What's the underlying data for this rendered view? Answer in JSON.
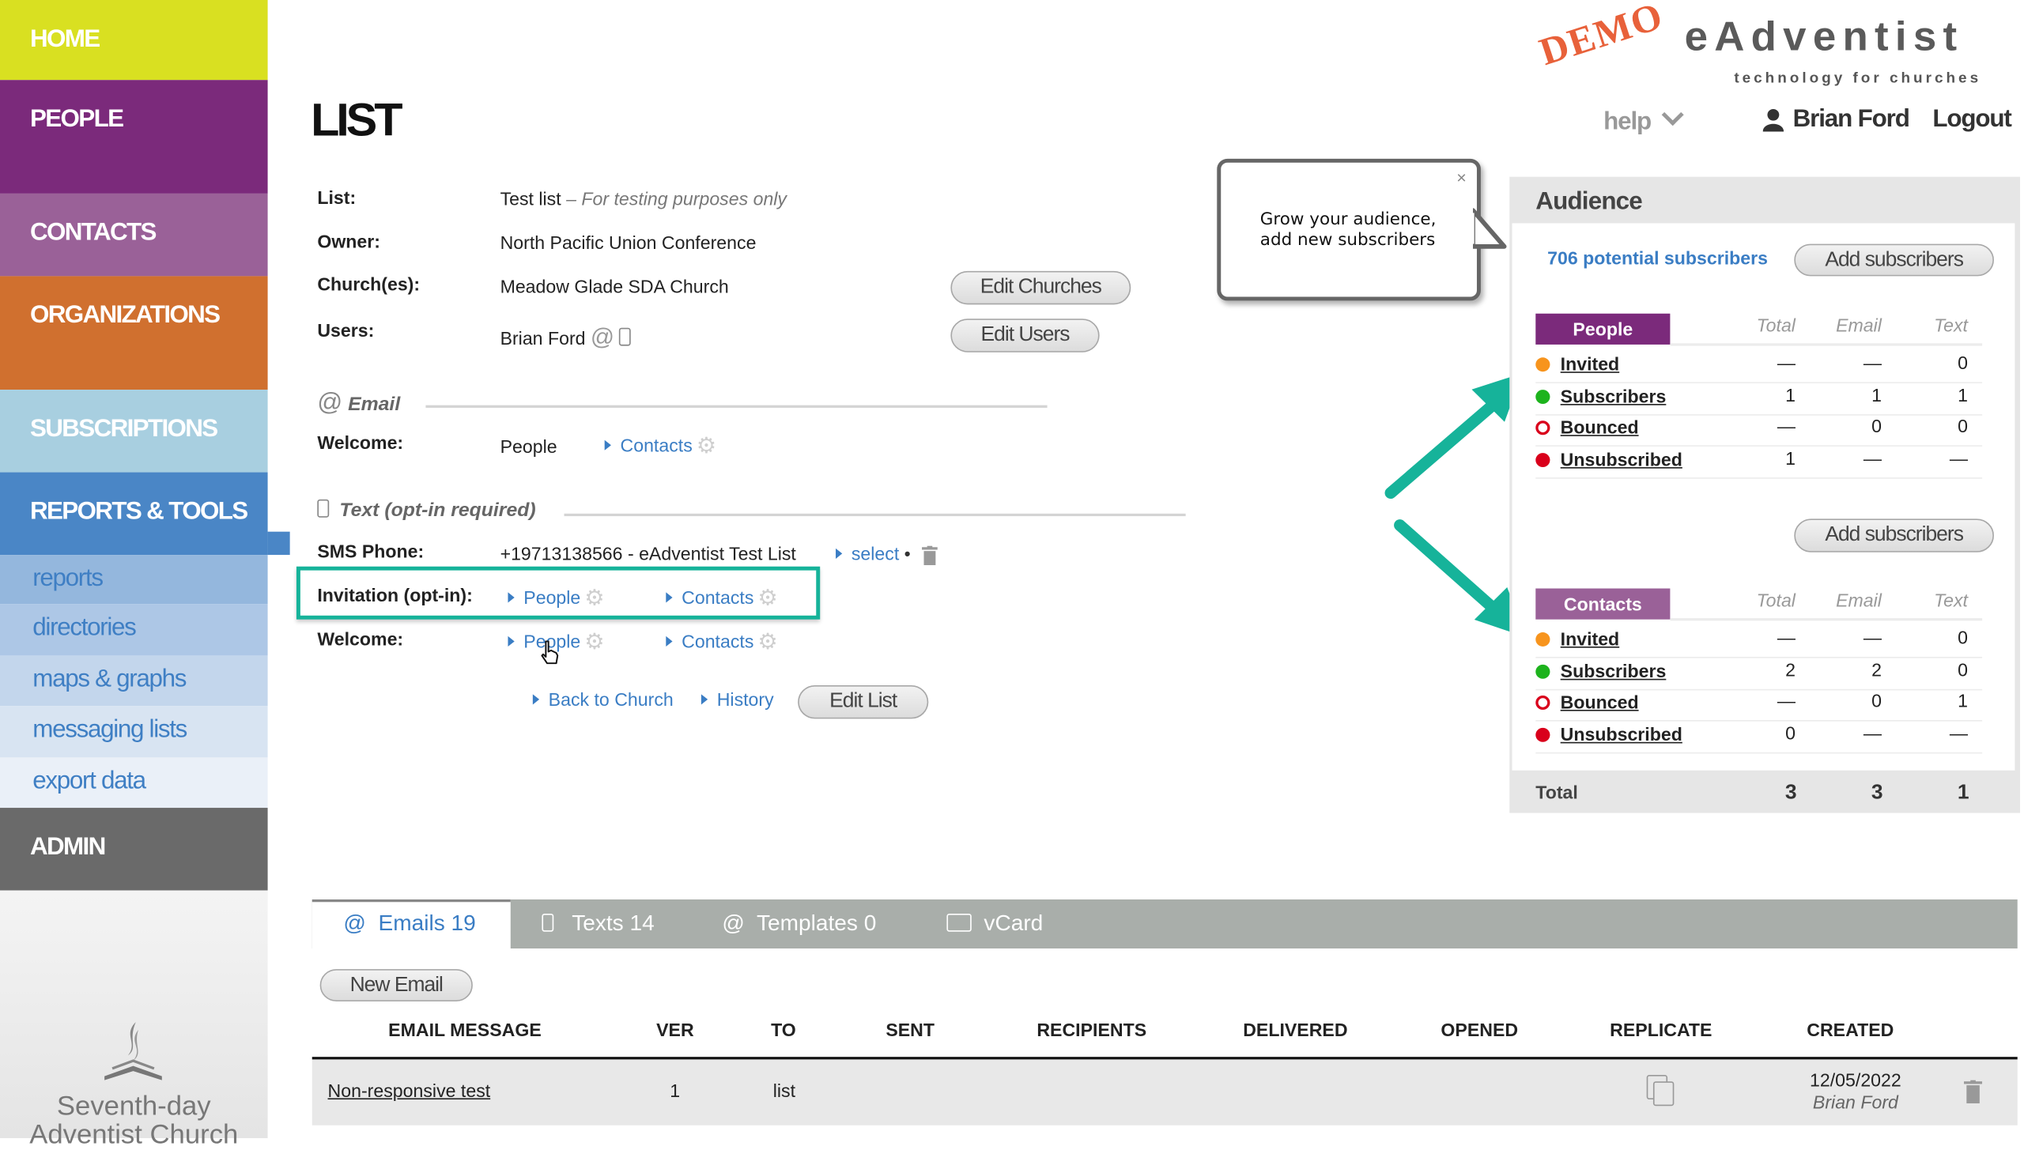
{
  "sidebar": {
    "items": [
      {
        "label": "HOME",
        "color": "#d9e021"
      },
      {
        "label": "PEOPLE",
        "color": "#7b2a7b"
      },
      {
        "label": "CONTACTS",
        "color": "#9a6198"
      },
      {
        "label": "ORGANIZATIONS",
        "color": "#d0702f"
      },
      {
        "label": "SUBSCRIPTIONS",
        "color": "#a8cfe0"
      },
      {
        "label": "REPORTS & TOOLS",
        "color": "#4a86c6"
      },
      {
        "label": "ADMIN",
        "color": "#6a6a6a"
      }
    ],
    "subitems": [
      "reports",
      "directories",
      "maps & graphs",
      "messaging lists",
      "export data"
    ],
    "logo_text": [
      "Seventh-day",
      "Adventist Church"
    ]
  },
  "header": {
    "logo": "eAdventist",
    "logo_tagline": "technology for churches",
    "demo_stamp": "DEMO",
    "help": "help",
    "user": "Brian Ford",
    "logout": "Logout"
  },
  "page_title": "LIST",
  "details": {
    "list_label": "List:",
    "list_value": "Test list",
    "list_note": " – For testing purposes only",
    "owner_label": "Owner:",
    "owner_value": "North Pacific Union Conference",
    "churches_label": "Church(es):",
    "churches_value": "Meadow Glade SDA Church",
    "users_label": "Users:",
    "users_value": "Brian Ford",
    "edit_churches": "Edit Churches",
    "edit_users": "Edit Users"
  },
  "email_section": {
    "title": "Email",
    "welcome_label": "Welcome:",
    "welcome_people": "People",
    "welcome_contacts": "Contacts"
  },
  "text_section": {
    "title": "Text (opt-in required)",
    "sms_label": "SMS Phone:",
    "sms_value": "+19713138566 - eAdventist Test List",
    "select": "select",
    "invitation_label": "Invitation (opt-in):",
    "invitation_people": "People",
    "invitation_contacts": "Contacts",
    "welcome_label": "Welcome:",
    "welcome_people": "People",
    "welcome_contacts": "Contacts"
  },
  "footer_links": {
    "back": "Back to Church",
    "history": "History",
    "edit_list": "Edit List"
  },
  "tooltip": {
    "line1": "Grow your audience,",
    "line2": "add new subscribers",
    "close": "×"
  },
  "highlight_color": "#16b39a",
  "audience": {
    "title": "Audience",
    "potential": "706 potential subscribers",
    "add_subscribers": "Add subscribers",
    "columns": [
      "Total",
      "Email",
      "Text"
    ],
    "groups": [
      {
        "name": "People",
        "color": "#7b2a7b",
        "rows": [
          {
            "label": "Invited",
            "status": "invited",
            "values": [
              "—",
              "—",
              "0"
            ]
          },
          {
            "label": "Subscribers",
            "status": "subscribed",
            "values": [
              "1",
              "1",
              "1"
            ]
          },
          {
            "label": "Bounced",
            "status": "bounced",
            "values": [
              "—",
              "0",
              "0"
            ]
          },
          {
            "label": "Unsubscribed",
            "status": "unsubscribed",
            "values": [
              "1",
              "—",
              "—"
            ]
          }
        ]
      },
      {
        "name": "Contacts",
        "color": "#9a6198",
        "rows": [
          {
            "label": "Invited",
            "status": "invited",
            "values": [
              "—",
              "—",
              "0"
            ]
          },
          {
            "label": "Subscribers",
            "status": "subscribed",
            "values": [
              "2",
              "2",
              "0"
            ]
          },
          {
            "label": "Bounced",
            "status": "bounced",
            "values": [
              "—",
              "0",
              "1"
            ]
          },
          {
            "label": "Unsubscribed",
            "status": "unsubscribed",
            "values": [
              "0",
              "—",
              "—"
            ]
          }
        ]
      }
    ],
    "total_label": "Total",
    "totals": [
      "3",
      "3",
      "1"
    ]
  },
  "tabs": [
    {
      "label": "Emails 19",
      "icon": "at-icon",
      "active": true
    },
    {
      "label": "Texts 14",
      "icon": "phone-icon"
    },
    {
      "label": "Templates 0",
      "icon": "at-icon"
    },
    {
      "label": "vCard",
      "icon": "vcard-icon"
    }
  ],
  "new_email": "New Email",
  "email_table": {
    "headers": [
      "EMAIL MESSAGE",
      "VER",
      "TO",
      "SENT",
      "RECIPIENTS",
      "DELIVERED",
      "OPENED",
      "REPLICATE",
      "CREATED"
    ],
    "rows": [
      {
        "message": "Non-responsive test",
        "ver": "1",
        "to": "list",
        "created_date": "12/05/2022",
        "created_by": "Brian Ford"
      }
    ]
  }
}
